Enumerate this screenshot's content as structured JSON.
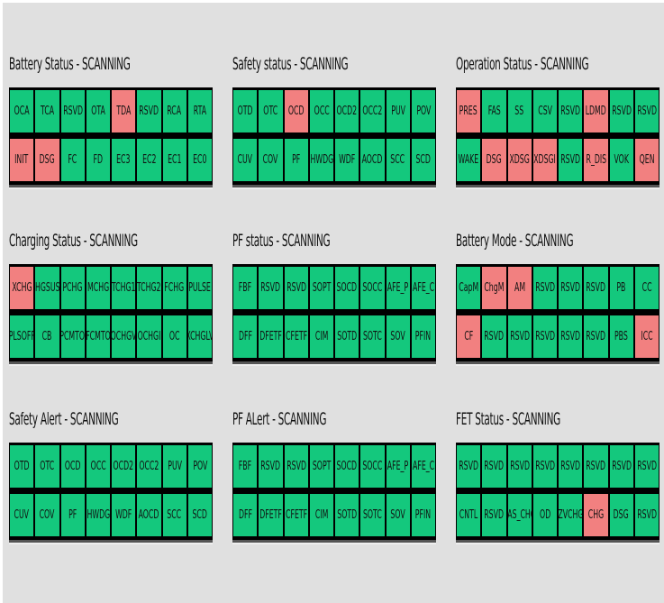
{
  "colors": {
    "ok": "#14c87d",
    "flag": "#f28080",
    "background": "#e0e0e0"
  },
  "panels": [
    {
      "title": "Battery Status - SCANNING",
      "rows": [
        [
          [
            "OCA",
            0
          ],
          [
            "TCA",
            0
          ],
          [
            "RSVD",
            0
          ],
          [
            "OTA",
            0
          ],
          [
            "TDA",
            1
          ],
          [
            "RSVD",
            0
          ],
          [
            "RCA",
            0
          ],
          [
            "RTA",
            0
          ]
        ],
        [
          [
            "INIT",
            1
          ],
          [
            "DSG",
            1
          ],
          [
            "FC",
            0
          ],
          [
            "FD",
            0
          ],
          [
            "EC3",
            0
          ],
          [
            "EC2",
            0
          ],
          [
            "EC1",
            0
          ],
          [
            "EC0",
            0
          ]
        ]
      ]
    },
    {
      "title": "Safety status - SCANNING",
      "rows": [
        [
          [
            "OTD",
            0
          ],
          [
            "OTC",
            0
          ],
          [
            "OCD",
            1
          ],
          [
            "OCC",
            0
          ],
          [
            "OCD2",
            0
          ],
          [
            "OCC2",
            0
          ],
          [
            "PUV",
            0
          ],
          [
            "POV",
            0
          ]
        ],
        [
          [
            "CUV",
            0
          ],
          [
            "COV",
            0
          ],
          [
            "PF",
            0
          ],
          [
            "HWDG",
            0
          ],
          [
            "WDF",
            0
          ],
          [
            "AOCD",
            0
          ],
          [
            "SCC",
            0
          ],
          [
            "SCD",
            0
          ]
        ]
      ]
    },
    {
      "title": "Operation Status - SCANNING",
      "rows": [
        [
          [
            "PRES",
            1
          ],
          [
            "FAS",
            0
          ],
          [
            "SS",
            0
          ],
          [
            "CSV",
            0
          ],
          [
            "RSVD",
            0
          ],
          [
            "LDMD",
            1
          ],
          [
            "RSVD",
            0
          ],
          [
            "RSVD",
            0
          ]
        ],
        [
          [
            "WAKE",
            0
          ],
          [
            "DSG",
            1
          ],
          [
            "XDSG",
            1
          ],
          [
            "XDSGI",
            1
          ],
          [
            "RSVD",
            0
          ],
          [
            "R_DIS",
            1
          ],
          [
            "VOK",
            0
          ],
          [
            "QEN",
            1
          ]
        ]
      ]
    },
    {
      "title": "Charging Status - SCANNING",
      "rows": [
        [
          [
            "XCHG",
            1
          ],
          [
            "CHGSUSP",
            0
          ],
          [
            "PCHG",
            0
          ],
          [
            "MCHG",
            0
          ],
          [
            "TCHG1",
            0
          ],
          [
            "TCHG2",
            0
          ],
          [
            "FCHG",
            0
          ],
          [
            "PULSE",
            0
          ]
        ],
        [
          [
            "PLSOFF",
            0
          ],
          [
            "CB",
            0
          ],
          [
            "PCMTO",
            0
          ],
          [
            "FCMTO",
            0
          ],
          [
            "OCHGV",
            0
          ],
          [
            "OCHGI",
            0
          ],
          [
            "OC",
            0
          ],
          [
            "XCHGLV",
            0
          ]
        ]
      ]
    },
    {
      "title": "PF status - SCANNING",
      "rows": [
        [
          [
            "FBF",
            0
          ],
          [
            "RSVD",
            0
          ],
          [
            "RSVD",
            0
          ],
          [
            "SOPT",
            0
          ],
          [
            "SOCD",
            0
          ],
          [
            "SOCC",
            0
          ],
          [
            "AFE_P",
            0
          ],
          [
            "AFE_C",
            0
          ]
        ],
        [
          [
            "DFF",
            0
          ],
          [
            "DFETF",
            0
          ],
          [
            "CFETF",
            0
          ],
          [
            "CIM",
            0
          ],
          [
            "SOTD",
            0
          ],
          [
            "SOTC",
            0
          ],
          [
            "SOV",
            0
          ],
          [
            "PFIN",
            0
          ]
        ]
      ]
    },
    {
      "title": "Battery Mode - SCANNING",
      "rows": [
        [
          [
            "CapM",
            0
          ],
          [
            "ChgM",
            1
          ],
          [
            "AM",
            1
          ],
          [
            "RSVD",
            0
          ],
          [
            "RSVD",
            0
          ],
          [
            "RSVD",
            0
          ],
          [
            "PB",
            0
          ],
          [
            "CC",
            0
          ]
        ],
        [
          [
            "CF",
            1
          ],
          [
            "RSVD",
            0
          ],
          [
            "RSVD",
            0
          ],
          [
            "RSVD",
            0
          ],
          [
            "RSVD",
            0
          ],
          [
            "RSVD",
            0
          ],
          [
            "PBS",
            0
          ],
          [
            "ICC",
            1
          ]
        ]
      ]
    },
    {
      "title": "Safety Alert - SCANNING",
      "rows": [
        [
          [
            "OTD",
            0
          ],
          [
            "OTC",
            0
          ],
          [
            "OCD",
            0
          ],
          [
            "OCC",
            0
          ],
          [
            "OCD2",
            0
          ],
          [
            "OCC2",
            0
          ],
          [
            "PUV",
            0
          ],
          [
            "POV",
            0
          ]
        ],
        [
          [
            "CUV",
            0
          ],
          [
            "COV",
            0
          ],
          [
            "PF",
            0
          ],
          [
            "HWDG",
            0
          ],
          [
            "WDF",
            0
          ],
          [
            "AOCD",
            0
          ],
          [
            "SCC",
            0
          ],
          [
            "SCD",
            0
          ]
        ]
      ]
    },
    {
      "title": "PF ALert - SCANNING",
      "rows": [
        [
          [
            "FBF",
            0
          ],
          [
            "RSVD",
            0
          ],
          [
            "RSVD",
            0
          ],
          [
            "SOPT",
            0
          ],
          [
            "SOCD",
            0
          ],
          [
            "SOCC",
            0
          ],
          [
            "AFE_P",
            0
          ],
          [
            "AFE_C",
            0
          ]
        ],
        [
          [
            "DFF",
            0
          ],
          [
            "DFETF",
            0
          ],
          [
            "CFETF",
            0
          ],
          [
            "CIM",
            0
          ],
          [
            "SOTD",
            0
          ],
          [
            "SOTC",
            0
          ],
          [
            "SOV",
            0
          ],
          [
            "PFIN",
            0
          ]
        ]
      ]
    },
    {
      "title": "FET Status - SCANNING",
      "rows": [
        [
          [
            "RSVD",
            0
          ],
          [
            "RSVD",
            0
          ],
          [
            "RSVD",
            0
          ],
          [
            "RSVD",
            0
          ],
          [
            "RSVD",
            0
          ],
          [
            "RSVD",
            0
          ],
          [
            "RSVD",
            0
          ],
          [
            "RSVD",
            0
          ]
        ],
        [
          [
            "CNTL",
            0
          ],
          [
            "RSVD",
            0
          ],
          [
            "NAS_CHG",
            0
          ],
          [
            "OD",
            0
          ],
          [
            "ZVCHG",
            0
          ],
          [
            "CHG",
            1
          ],
          [
            "DSG",
            0
          ],
          [
            "RSVD",
            0
          ]
        ]
      ]
    }
  ]
}
